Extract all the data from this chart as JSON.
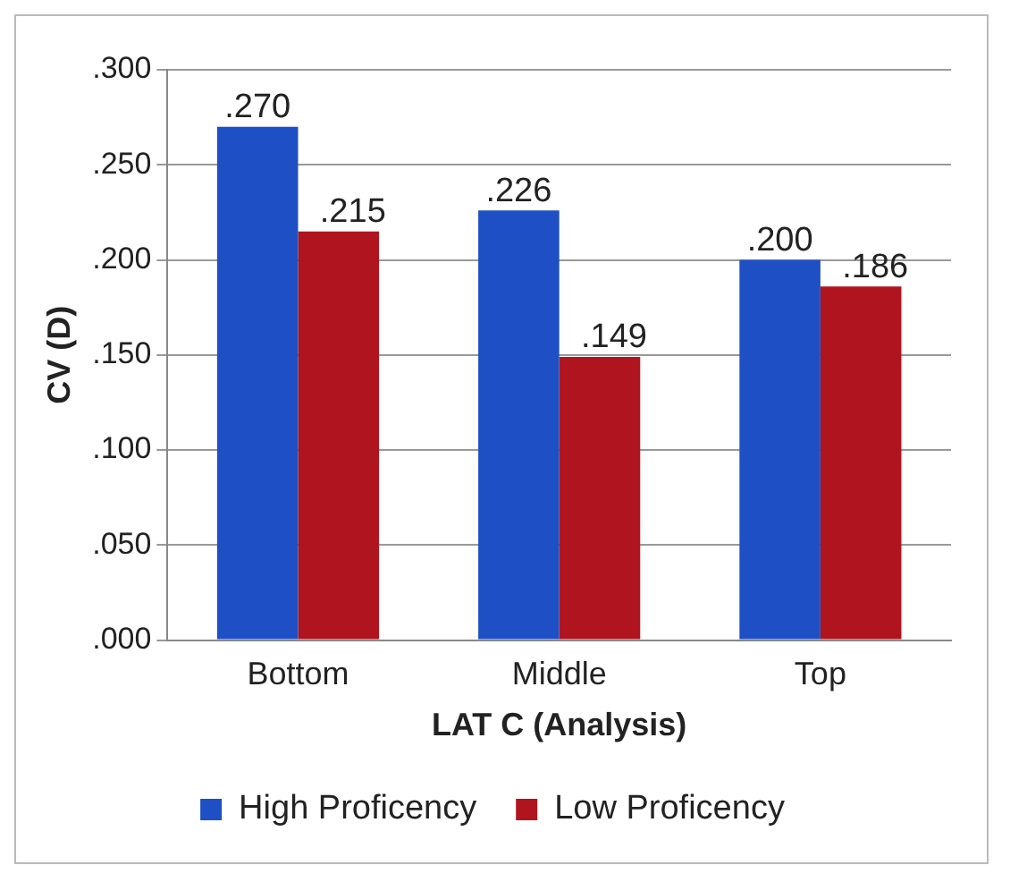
{
  "chart_data": {
    "type": "bar",
    "xlabel": "LAT C (Analysis)",
    "ylabel": "CV (D)",
    "categories": [
      "Bottom",
      "Middle",
      "Top"
    ],
    "series": [
      {
        "name": "High Proficency",
        "color": "#1f4fc4",
        "values": [
          0.27,
          0.226,
          0.2
        ],
        "value_labels": [
          ".270",
          ".226",
          ".200"
        ]
      },
      {
        "name": "Low Proficency",
        "color": "#b0141e",
        "values": [
          0.215,
          0.149,
          0.186
        ],
        "value_labels": [
          ".215",
          ".149",
          ".186"
        ]
      }
    ],
    "ylim": [
      0,
      0.3
    ],
    "yticks": [
      {
        "value": 0,
        "label": ".000"
      },
      {
        "value": 0.05,
        "label": ".050"
      },
      {
        "value": 0.1,
        "label": ".100"
      },
      {
        "value": 0.15,
        "label": ".150"
      },
      {
        "value": 0.2,
        "label": ".200"
      },
      {
        "value": 0.25,
        "label": ".250"
      },
      {
        "value": 0.3,
        "label": ".300"
      }
    ],
    "grid": "y",
    "legend": "bottom"
  }
}
